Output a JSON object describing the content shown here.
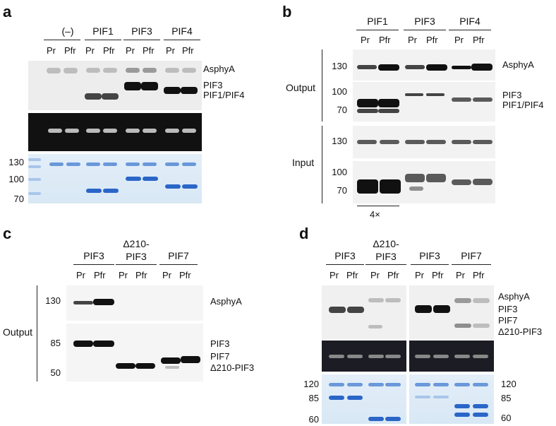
{
  "panels": {
    "a": {
      "label": "a",
      "groups": [
        "(–)",
        "PIF1",
        "PIF3",
        "PIF4"
      ],
      "lanes": [
        "Pr",
        "Pfr",
        "Pr",
        "Pfr",
        "Pr",
        "Pfr",
        "Pr",
        "Pfr"
      ],
      "band_labels": [
        "AsphyA",
        "PIF3",
        "PIF1/PIF4"
      ],
      "mw": [
        "130",
        "100",
        "70"
      ]
    },
    "b": {
      "label": "b",
      "groups": [
        "PIF1",
        "PIF3",
        "PIF4"
      ],
      "lanes": [
        "Pr",
        "Pfr",
        "Pr",
        "Pfr",
        "Pr",
        "Pfr"
      ],
      "section_output": "Output",
      "section_input": "Input",
      "band_labels": [
        "AsphyA",
        "PIF3",
        "PIF1/PIF4"
      ],
      "mw_top": [
        "130"
      ],
      "mw_mid": [
        "100",
        "70"
      ],
      "mw_input": [
        "130"
      ],
      "mw_bottom": [
        "100",
        "70"
      ],
      "footnote": "4×"
    },
    "c": {
      "label": "c",
      "groups": [
        "PIF3",
        "Δ210-\nPIF3",
        "PIF7"
      ],
      "lanes": [
        "Pr",
        "Pfr",
        "Pr",
        "Pfr",
        "Pr",
        "Pfr"
      ],
      "section_output": "Output",
      "band_labels": [
        "AsphyA",
        "PIF3",
        "PIF7",
        "Δ210-PIF3"
      ],
      "mw_top": [
        "130"
      ],
      "mw_bottom": [
        "85",
        "50"
      ]
    },
    "d": {
      "label": "d",
      "groups": [
        "PIF3",
        "Δ210-\nPIF3",
        "PIF3",
        "PIF7"
      ],
      "lanes": [
        "Pr",
        "Pfr",
        "Pr",
        "Pfr",
        "Pr",
        "Pfr",
        "Pr",
        "Pfr"
      ],
      "band_labels": [
        "AsphyA",
        "PIF3",
        "PIF7",
        "Δ210-PIF3"
      ],
      "mw_left": [
        "120",
        "85",
        "60"
      ],
      "mw_right": [
        "120",
        "85",
        "60"
      ]
    }
  }
}
